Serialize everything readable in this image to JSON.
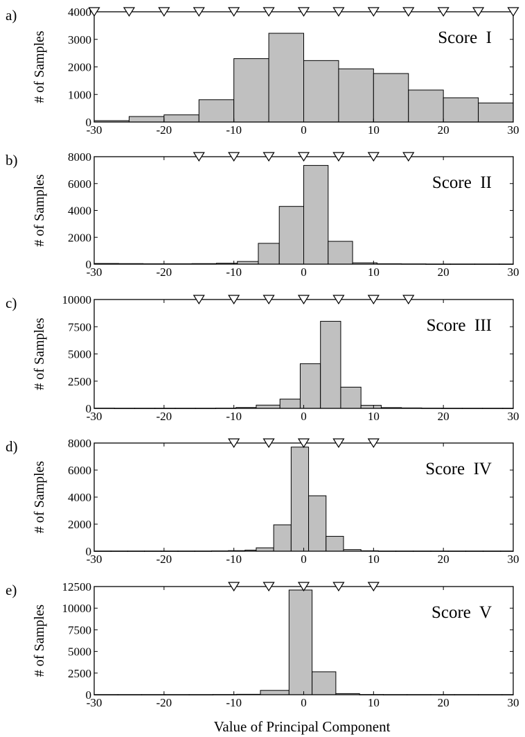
{
  "xlabel": "Value of Principal Component",
  "chart_data": [
    {
      "type": "bar",
      "panel": "a)",
      "label": "Score  I",
      "ylabel": "# of Samples",
      "xlim": [
        -30,
        30
      ],
      "ylim": [
        0,
        4000
      ],
      "x_ticks": [
        "-30",
        "-20",
        "-10",
        "0",
        "10",
        "20",
        "30"
      ],
      "y_ticks": [
        "0",
        "1000",
        "2000",
        "3000",
        "4000"
      ],
      "bin_edges": [
        -30,
        -25,
        -20,
        -15,
        -10,
        -5,
        0,
        5,
        10,
        15,
        20,
        25,
        30
      ],
      "values": [
        50,
        200,
        260,
        810,
        2300,
        3220,
        2230,
        1930,
        1760,
        1160,
        880,
        690,
        20
      ],
      "markers": [
        -30,
        -25,
        -20,
        -15,
        -10,
        -5,
        0,
        5,
        10,
        15,
        20,
        25,
        30
      ]
    },
    {
      "type": "bar",
      "panel": "b)",
      "label": "Score  II",
      "ylabel": "# of Samples",
      "xlim": [
        -30,
        30
      ],
      "ylim": [
        0,
        8000
      ],
      "x_ticks": [
        "-30",
        "-20",
        "-10",
        "0",
        "10",
        "20",
        "30"
      ],
      "y_ticks": [
        "0",
        "2000",
        "4000",
        "6000",
        "8000"
      ],
      "bin_edges": [
        -30,
        -26.5,
        -23,
        -19.5,
        -16,
        -12.5,
        -9.5,
        -6.5,
        -3.5,
        0,
        3.5,
        7,
        10.5,
        14,
        17.5,
        21,
        24.5,
        28,
        30
      ],
      "values": [
        50,
        40,
        30,
        30,
        40,
        70,
        200,
        1550,
        4300,
        7350,
        1700,
        100,
        30,
        20,
        10,
        10,
        10,
        10
      ],
      "markers": [
        -15,
        -10,
        -5,
        0,
        5,
        10,
        15
      ]
    },
    {
      "type": "bar",
      "panel": "c)",
      "label": "Score  III",
      "ylabel": "# of Samples",
      "xlim": [
        -30,
        30
      ],
      "ylim": [
        0,
        10000
      ],
      "x_ticks": [
        "-30",
        "-20",
        "-10",
        "0",
        "10",
        "20",
        "30"
      ],
      "y_ticks": [
        "0",
        "2500",
        "5000",
        "7500",
        "10000"
      ],
      "bin_edges": [
        -30,
        -27.1,
        -24.2,
        -21.3,
        -18.4,
        -15.5,
        -12.6,
        -9.7,
        -6.8,
        -3.4,
        -0.5,
        2.4,
        5.3,
        8.2,
        11.1,
        14,
        16.9,
        19.8,
        22.7,
        25.6,
        28.5,
        30
      ],
      "values": [
        20,
        10,
        10,
        10,
        10,
        10,
        20,
        80,
        300,
        850,
        4100,
        8000,
        1950,
        280,
        70,
        40,
        20,
        10,
        10,
        10,
        10
      ],
      "markers": [
        -15,
        -10,
        -5,
        0,
        5,
        10,
        15
      ]
    },
    {
      "type": "bar",
      "panel": "d)",
      "label": "Score  IV",
      "ylabel": "# of Samples",
      "xlim": [
        -30,
        30
      ],
      "ylim": [
        0,
        8000
      ],
      "x_ticks": [
        "-30",
        "-20",
        "-10",
        "0",
        "10",
        "20",
        "30"
      ],
      "y_ticks": [
        "0",
        "2000",
        "4000",
        "6000",
        "8000"
      ],
      "bin_edges": [
        -30,
        -27.6,
        -25.2,
        -22.8,
        -20.4,
        -18,
        -15.6,
        -13.2,
        -10.8,
        -8.4,
        -6.8,
        -4.3,
        -1.8,
        0.7,
        3.2,
        5.7,
        8.2,
        10.7,
        13.2,
        15.7,
        18.2,
        20.7,
        23.2,
        25.7,
        28.2,
        30
      ],
      "values": [
        10,
        10,
        10,
        10,
        10,
        10,
        10,
        20,
        40,
        80,
        250,
        1950,
        7700,
        4100,
        1100,
        120,
        30,
        10,
        10,
        10,
        10,
        10,
        10,
        10,
        10
      ],
      "markers": [
        -10,
        -5,
        0,
        5,
        10
      ]
    },
    {
      "type": "bar",
      "panel": "e)",
      "label": "Score  V",
      "ylabel": "# of Samples",
      "xlim": [
        -30,
        30
      ],
      "ylim": [
        0,
        12500
      ],
      "x_ticks": [
        "-30",
        "-20",
        "-10",
        "0",
        "10",
        "20",
        "30"
      ],
      "y_ticks": [
        "0",
        "2500",
        "5000",
        "7500",
        "10000",
        "12500"
      ],
      "bin_edges": [
        -30,
        -26.6,
        -23.2,
        -19.8,
        -16.4,
        -13,
        -9.6,
        -6.2,
        -2.1,
        1.2,
        4.6,
        8,
        11.4,
        14.8,
        18.2,
        21.6,
        25,
        28.4,
        30
      ],
      "values": [
        10,
        10,
        10,
        10,
        10,
        20,
        50,
        500,
        12100,
        2650,
        130,
        20,
        10,
        10,
        10,
        10,
        10,
        10
      ],
      "markers": [
        -10,
        -5,
        0,
        5,
        10
      ]
    }
  ]
}
